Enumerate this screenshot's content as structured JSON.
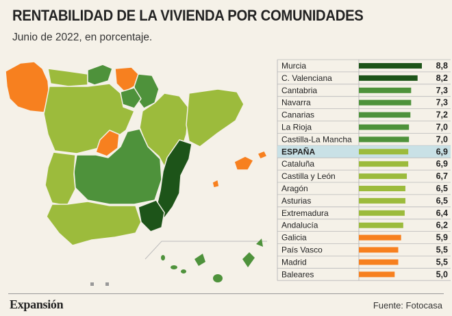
{
  "header": {
    "title": "RENTABILIDAD DE LA VIVIENDA POR COMUNIDADES",
    "subtitle": "Junio de 2022, en porcentaje."
  },
  "footer": {
    "brand": "Expansión",
    "source": "Fuente: Fotocasa"
  },
  "colors": {
    "dark_green": "#1d5419",
    "mid_green": "#4e923b",
    "light_green": "#9cbb3c",
    "orange": "#f7801f",
    "highlight_row": "#c9e1e6",
    "background": "#f5f1e8"
  },
  "chart_data": {
    "type": "bar",
    "orientation": "horizontal",
    "unit": "%",
    "xlim": [
      0,
      8.8
    ],
    "categories": [
      "Murcia",
      "C. Valenciana",
      "Cantabria",
      "Navarra",
      "Canarias",
      "La Rioja",
      "Castilla-La Mancha",
      "ESPAÑA",
      "Cataluña",
      "Castilla y León",
      "Aragón",
      "Asturias",
      "Extremadura",
      "Andalucía",
      "Galicia",
      "País Vasco",
      "Madrid",
      "Baleares"
    ],
    "values": [
      8.8,
      8.2,
      7.3,
      7.3,
      7.2,
      7.0,
      7.0,
      6.9,
      6.9,
      6.7,
      6.5,
      6.5,
      6.4,
      6.2,
      5.9,
      5.5,
      5.5,
      5.0
    ],
    "value_labels": [
      "8,8",
      "8,2",
      "7,3",
      "7,3",
      "7,2",
      "7,0",
      "7,0",
      "6,9",
      "6,9",
      "6,7",
      "6,5",
      "6,5",
      "6,4",
      "6,2",
      "5,9",
      "5,5",
      "5,5",
      "5,0"
    ],
    "bar_colors": [
      "#1d5419",
      "#1d5419",
      "#4e923b",
      "#4e923b",
      "#4e923b",
      "#4e923b",
      "#4e923b",
      "#9cbb3c",
      "#9cbb3c",
      "#9cbb3c",
      "#9cbb3c",
      "#9cbb3c",
      "#9cbb3c",
      "#9cbb3c",
      "#f7801f",
      "#f7801f",
      "#f7801f",
      "#f7801f"
    ],
    "highlight": "ESPAÑA",
    "legend": "none",
    "grid": false
  }
}
